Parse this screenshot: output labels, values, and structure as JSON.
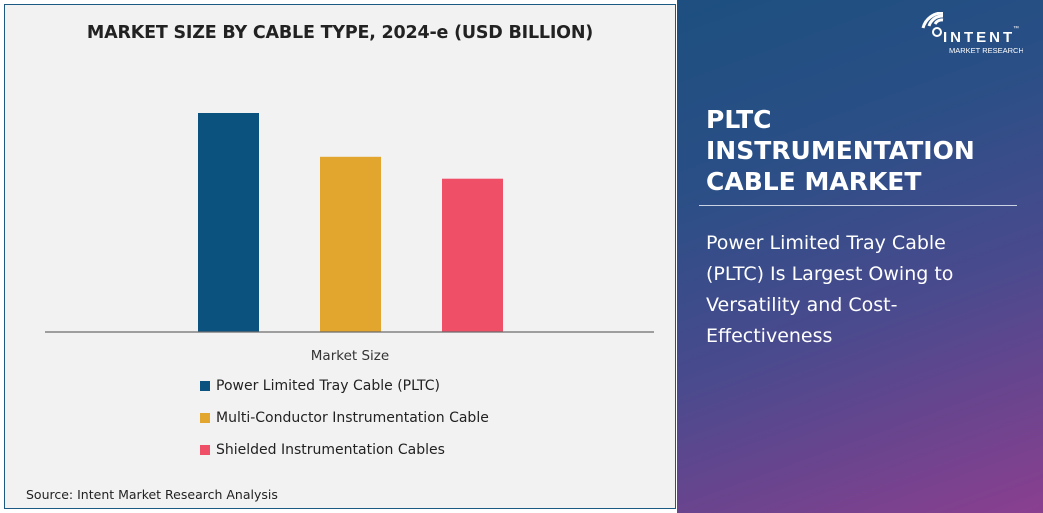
{
  "chart_data": {
    "type": "bar",
    "title": "MARKET SIZE BY CABLE TYPE, 2024-e (USD BILLION)",
    "xlabel": "Market Size",
    "ylabel": "",
    "categories": [
      "Market Size"
    ],
    "series": [
      {
        "name": "Power Limited Tray Cable (PLTC)",
        "values": [
          100
        ],
        "color": "#0b527f"
      },
      {
        "name": "Multi-Conductor Instrumentation Cable",
        "values": [
          80
        ],
        "color": "#e2a52e"
      },
      {
        "name": "Shielded Instrumentation Cables",
        "values": [
          70
        ],
        "color": "#ef4f67"
      }
    ],
    "ylim": [
      0,
      100
    ],
    "grid": false,
    "legend": "bottom"
  },
  "source": "Source: Intent Market Research Analysis",
  "logo": {
    "text": "INTENT",
    "sub": "MARKET RESEARCH",
    "tm": "™"
  },
  "side": {
    "title_lines": [
      "PLTC",
      "INSTRUMENTATION",
      "CABLE MARKET"
    ],
    "subtitle": "Power Limited Tray Cable (PLTC) Is Largest Owing to Versatility and Cost-Effectiveness"
  }
}
